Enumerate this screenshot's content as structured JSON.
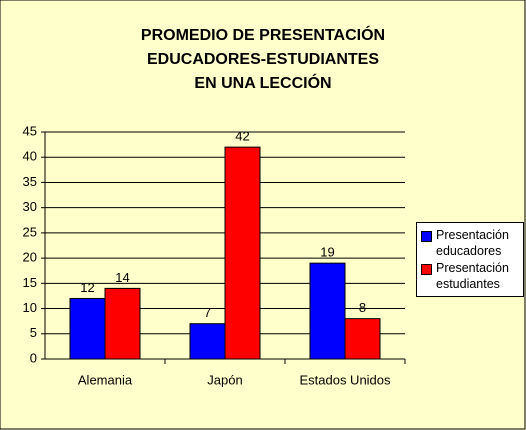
{
  "chart_data": {
    "type": "bar",
    "title": [
      "PROMEDIO DE PRESENTACIÓN",
      "EDUCADORES-ESTUDIANTES",
      "EN UNA LECCIÓN"
    ],
    "categories": [
      "Alemania",
      "Japón",
      "Estados Unidos"
    ],
    "series": [
      {
        "name": "Presentación educadores",
        "color": "#0000ff",
        "values": [
          12,
          7,
          19
        ]
      },
      {
        "name": "Presentación estudiantes",
        "color": "#ff0000",
        "values": [
          14,
          42,
          8
        ]
      }
    ],
    "ylim": [
      0,
      45
    ],
    "yticks": [
      0,
      5,
      10,
      15,
      20,
      25,
      30,
      35,
      40,
      45
    ],
    "grid": true,
    "legend": "right"
  }
}
